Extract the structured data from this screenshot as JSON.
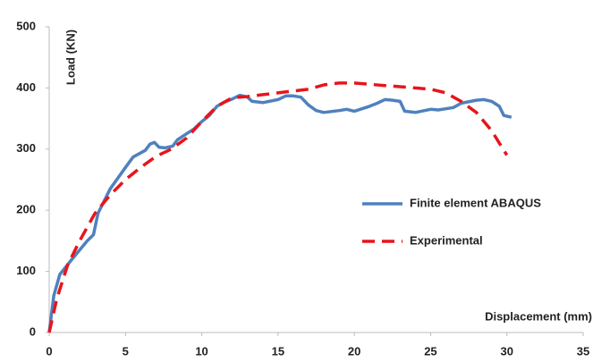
{
  "chart_data": {
    "type": "line",
    "x_label": "Displacement (mm)",
    "y_label": "Load (KN)",
    "xlim": [
      0,
      35
    ],
    "xticks": [
      0,
      5,
      10,
      15,
      20,
      25,
      30,
      35
    ],
    "ylim": [
      0,
      500
    ],
    "yticks": [
      0,
      100,
      200,
      300,
      400,
      500
    ],
    "grid": false,
    "legend": "right",
    "series": [
      {
        "name": "Finite element ABAQUS",
        "color": "#4f81bd",
        "dash": false,
        "x": [
          0,
          0.3,
          0.7,
          1.5,
          2.5,
          2.9,
          3.2,
          4,
          5,
          5.5,
          6.3,
          6.6,
          6.9,
          7.2,
          7.6,
          8.1,
          8.4,
          9,
          9.5,
          10,
          10.5,
          11,
          11.5,
          12,
          12.5,
          13,
          13.3,
          14,
          15,
          15.5,
          16,
          16.5,
          17,
          17.5,
          18,
          19,
          19.5,
          20,
          21,
          21.5,
          22,
          22.5,
          23,
          23.3,
          24,
          25,
          25.5,
          26,
          26.5,
          27,
          28,
          28.5,
          29,
          29.5,
          29.8,
          30.3
        ],
        "values": [
          0,
          60,
          95,
          120,
          150,
          160,
          195,
          235,
          270,
          287,
          298,
          308,
          311,
          303,
          302,
          305,
          315,
          325,
          333,
          345,
          355,
          370,
          377,
          382,
          388,
          385,
          378,
          376,
          381,
          387,
          387,
          385,
          372,
          363,
          360,
          363,
          365,
          362,
          370,
          375,
          381,
          380,
          378,
          362,
          360,
          365,
          364,
          366,
          368,
          375,
          380,
          381,
          378,
          370,
          355,
          352
        ]
      },
      {
        "name": "Experimental",
        "color": "#e8141c",
        "dash": true,
        "x": [
          0,
          0.5,
          1.2,
          2,
          3,
          4,
          5,
          6,
          7,
          8,
          9,
          10,
          11,
          12,
          13,
          14,
          15,
          16,
          17,
          18,
          19,
          20,
          21,
          22,
          23,
          24,
          25,
          26,
          27,
          28,
          29,
          30
        ],
        "values": [
          0,
          55,
          110,
          150,
          195,
          225,
          250,
          270,
          288,
          300,
          318,
          345,
          370,
          384,
          386,
          389,
          392,
          395,
          398,
          405,
          408,
          408,
          406,
          404,
          402,
          400,
          398,
          392,
          378,
          360,
          330,
          290
        ]
      }
    ]
  }
}
